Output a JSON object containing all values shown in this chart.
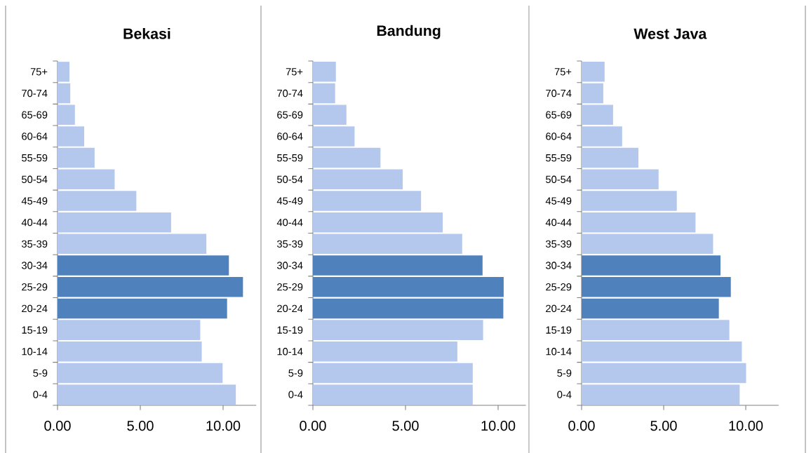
{
  "chart_data": [
    {
      "type": "bar",
      "orientation": "horizontal",
      "title": "Bekasi",
      "categories": [
        "75+",
        "70-74",
        "65-69",
        "60-64",
        "55-59",
        "50-54",
        "45-49",
        "40-44",
        "35-39",
        "30-34",
        "25-29",
        "20-24",
        "15-19",
        "10-14",
        "5-9",
        "0-4"
      ],
      "values": [
        0.72,
        0.77,
        1.05,
        1.61,
        2.24,
        3.45,
        4.76,
        6.86,
        8.99,
        10.35,
        11.2,
        10.24,
        8.62,
        8.71,
        9.97,
        10.77
      ],
      "colors": [
        "#b4c8ee",
        "#b4c8ee",
        "#b4c8ee",
        "#b4c8ee",
        "#b4c8ee",
        "#b4c8ee",
        "#b4c8ee",
        "#b4c8ee",
        "#b4c8ee",
        "#4f81bd",
        "#4f81bd",
        "#4f81bd",
        "#b4c8ee",
        "#b4c8ee",
        "#b4c8ee",
        "#b4c8ee"
      ],
      "xlim": [
        0,
        12
      ],
      "xticks": [
        {
          "value": 0,
          "label": "0.00"
        },
        {
          "value": 5,
          "label": "5.00"
        },
        {
          "value": 10,
          "label": "10.00"
        }
      ]
    },
    {
      "type": "bar",
      "orientation": "horizontal",
      "title": "Bandung",
      "categories": [
        "75+",
        "70-74",
        "65-69",
        "60-64",
        "55-59",
        "50-54",
        "45-49",
        "40-44",
        "35-39",
        "30-34",
        "25-29",
        "20-24",
        "15-19",
        "10-14",
        "5-9",
        "0-4"
      ],
      "values": [
        1.24,
        1.2,
        1.81,
        2.25,
        3.65,
        4.85,
        5.84,
        7.01,
        8.06,
        9.16,
        10.3,
        10.28,
        9.19,
        7.8,
        8.63,
        8.63
      ],
      "colors": [
        "#b4c8ee",
        "#b4c8ee",
        "#b4c8ee",
        "#b4c8ee",
        "#b4c8ee",
        "#b4c8ee",
        "#b4c8ee",
        "#b4c8ee",
        "#b4c8ee",
        "#4f81bd",
        "#4f81bd",
        "#4f81bd",
        "#b4c8ee",
        "#b4c8ee",
        "#b4c8ee",
        "#b4c8ee"
      ],
      "xlim": [
        0,
        11.5
      ],
      "xticks": [
        {
          "value": 0,
          "label": "0.00"
        },
        {
          "value": 5,
          "label": "5.00"
        },
        {
          "value": 10,
          "label": "10.00"
        }
      ]
    },
    {
      "type": "bar",
      "orientation": "horizontal",
      "title": "West Java",
      "categories": [
        "75+",
        "70-74",
        "65-69",
        "60-64",
        "55-59",
        "50-54",
        "45-49",
        "40-44",
        "35-39",
        "30-34",
        "25-29",
        "20-24",
        "15-19",
        "10-14",
        "5-9",
        "0-4"
      ],
      "values": [
        1.4,
        1.32,
        1.92,
        2.47,
        3.46,
        4.69,
        5.8,
        6.94,
        8.01,
        8.46,
        9.09,
        8.36,
        9.0,
        9.76,
        10.02,
        9.63
      ],
      "colors": [
        "#b4c8ee",
        "#b4c8ee",
        "#b4c8ee",
        "#b4c8ee",
        "#b4c8ee",
        "#b4c8ee",
        "#b4c8ee",
        "#b4c8ee",
        "#b4c8ee",
        "#4f81bd",
        "#4f81bd",
        "#4f81bd",
        "#b4c8ee",
        "#b4c8ee",
        "#b4c8ee",
        "#b4c8ee"
      ],
      "xlim": [
        0,
        12
      ],
      "xticks": [
        {
          "value": 0,
          "label": "0.00"
        },
        {
          "value": 5,
          "label": "5.00"
        },
        {
          "value": 10,
          "label": "10.00"
        }
      ]
    }
  ]
}
